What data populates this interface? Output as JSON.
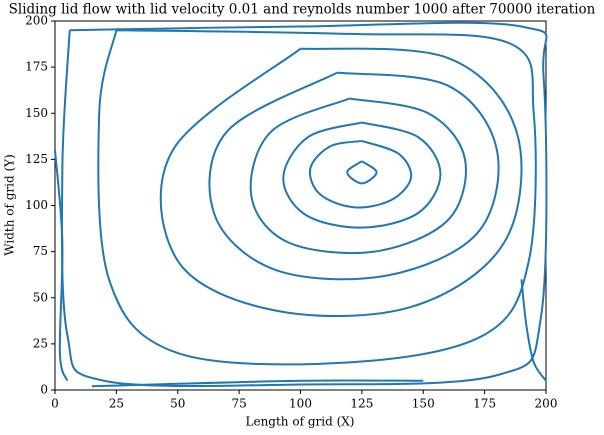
{
  "chart_data": {
    "type": "streamplot",
    "title": "Sliding lid flow with lid velocity 0.01 and reynolds number 1000 after 70000 iteration",
    "x_label": "Length of grid (X)",
    "y_label": "Width of grid (Y)",
    "xlim": [
      0,
      200
    ],
    "ylim": [
      0,
      200
    ],
    "xticks": [
      0,
      25,
      50,
      75,
      100,
      125,
      150,
      175,
      200
    ],
    "yticks": [
      0,
      25,
      50,
      75,
      100,
      125,
      150,
      175,
      200
    ],
    "color": "#1f77b4",
    "streamlines": [
      {
        "x": [
          125,
          131,
          125,
          119,
          125
        ],
        "y": [
          124,
          118,
          112,
          118,
          124
        ]
      },
      {
        "x": [
          125,
          140,
          145,
          137,
          122,
          108,
          104,
          112,
          125
        ],
        "y": [
          135,
          128,
          115,
          103,
          99,
          106,
          120,
          132,
          135
        ]
      },
      {
        "x": [
          125,
          148,
          157,
          148,
          125,
          102,
          93,
          103,
          125
        ],
        "y": [
          145,
          137,
          117,
          96,
          88,
          95,
          115,
          137,
          145
        ]
      },
      {
        "x": [
          120,
          152,
          167,
          160,
          130,
          95,
          80,
          88,
          120
        ],
        "y": [
          158,
          150,
          125,
          92,
          75,
          80,
          105,
          140,
          158
        ]
      },
      {
        "x": [
          115,
          160,
          180,
          172,
          135,
          90,
          65,
          70,
          115
        ],
        "y": [
          172,
          165,
          130,
          85,
          62,
          65,
          95,
          140,
          172
        ]
      },
      {
        "x": [
          100,
          160,
          188,
          183,
          145,
          90,
          50,
          48,
          100
        ],
        "y": [
          185,
          180,
          140,
          80,
          45,
          43,
          70,
          130,
          185
        ]
      },
      {
        "x": [
          25,
          120,
          185,
          195,
          193,
          175,
          120,
          50,
          22,
          18,
          25
        ],
        "y": [
          195,
          193,
          188,
          150,
          70,
          30,
          15,
          20,
          60,
          150,
          195
        ]
      },
      {
        "x": [
          6,
          100,
          190,
          199,
          198,
          180,
          100,
          20,
          5,
          3,
          6
        ],
        "y": [
          195,
          197,
          197,
          170,
          40,
          8,
          3,
          5,
          30,
          120,
          195
        ]
      },
      {
        "x": [
          150,
          100,
          40,
          15
        ],
        "y": [
          5,
          5,
          3,
          2
        ]
      },
      {
        "x": [
          190,
          192,
          195,
          200
        ],
        "y": [
          60,
          35,
          15,
          5
        ]
      },
      {
        "x": [
          0,
          3,
          2,
          5
        ],
        "y": [
          130,
          80,
          20,
          5
        ]
      }
    ]
  }
}
